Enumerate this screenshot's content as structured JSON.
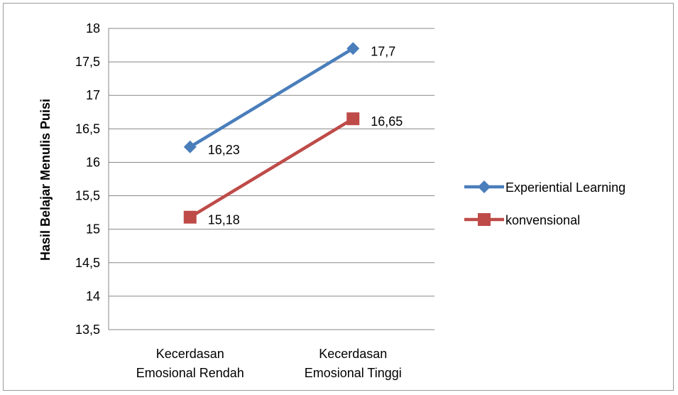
{
  "chart_data": {
    "type": "line",
    "title": "",
    "xlabel": "",
    "ylabel": "Hasil Belajar Menulis Puisi",
    "categories": [
      [
        "Kecerdasan",
        "Emosional Rendah"
      ],
      [
        "Kecerdasan",
        "Emosional Tinggi"
      ]
    ],
    "ylim": [
      13.5,
      18
    ],
    "yticks": [
      "13,5",
      "14",
      "14,5",
      "15",
      "15,5",
      "16",
      "16,5",
      "17",
      "17,5",
      "18"
    ],
    "ytick_values": [
      13.5,
      14,
      14.5,
      15,
      15.5,
      16,
      16.5,
      17,
      17.5,
      18
    ],
    "grid": true,
    "legend": "right",
    "series": [
      {
        "name": "Experiential Learning",
        "values": [
          16.23,
          17.7
        ],
        "labels": [
          "16,23",
          "17,7"
        ],
        "color": "#4a7ebb",
        "marker": "diamond"
      },
      {
        "name": "konvensional",
        "values": [
          15.18,
          16.65
        ],
        "labels": [
          "15,18",
          "16,65"
        ],
        "color": "#be4b48",
        "marker": "square"
      }
    ]
  }
}
